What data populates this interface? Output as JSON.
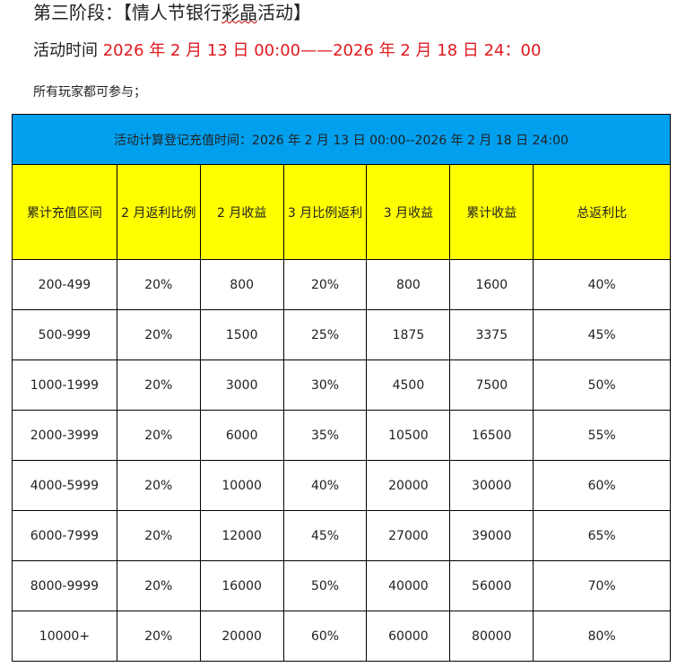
{
  "title_prefix": "第三阶段：【情人节银行",
  "title_squiggle": "彩晶",
  "title_suffix": "活动】",
  "time_label": "活动时间 ",
  "time_value": "2026 年 2 月 13 日 00:00——2026 年 2 月 18 日 24：00",
  "note": "所有玩家都可参与；",
  "table": {
    "banner": "活动计算登记充值时间：2026 年 2 月 13 日 00:00--2026 年 2 月 18 日 24:00",
    "headers": [
      "累计充值区间",
      "2 月返利比例",
      "2 月收益",
      "3 月比例返利",
      "3 月收益",
      "累计收益",
      "总返利比"
    ],
    "rows": [
      [
        "200-499",
        "20%",
        "800",
        "20%",
        "800",
        "1600",
        "40%"
      ],
      [
        "500-999",
        "20%",
        "1500",
        "25%",
        "1875",
        "3375",
        "45%"
      ],
      [
        "1000-1999",
        "20%",
        "3000",
        "30%",
        "4500",
        "7500",
        "50%"
      ],
      [
        "2000-3999",
        "20%",
        "6000",
        "35%",
        "10500",
        "16500",
        "55%"
      ],
      [
        "4000-5999",
        "20%",
        "10000",
        "40%",
        "20000",
        "30000",
        "60%"
      ],
      [
        "6000-7999",
        "20%",
        "12000",
        "45%",
        "27000",
        "39000",
        "65%"
      ],
      [
        "8000-9999",
        "20%",
        "16000",
        "50%",
        "40000",
        "56000",
        "70%"
      ],
      [
        "10000+",
        "20%",
        "20000",
        "60%",
        "60000",
        "80000",
        "80%"
      ]
    ]
  },
  "colors": {
    "banner": "#00a0ef",
    "header": "#ffff00",
    "time": "#e0191e"
  }
}
